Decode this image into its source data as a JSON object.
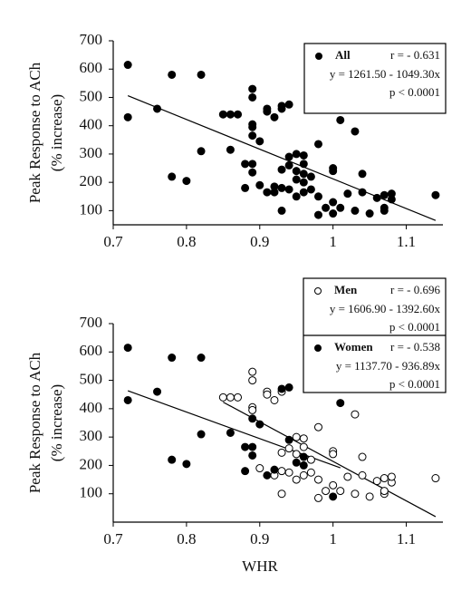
{
  "chart_data": [
    {
      "type": "scatter",
      "ylabel": [
        "Peak Response to ACh",
        "(% increase)"
      ],
      "xlim": [
        0.7,
        1.15
      ],
      "ylim": [
        50,
        700
      ],
      "xticks": [
        0.7,
        0.8,
        0.9,
        1,
        1.1
      ],
      "yticks": [
        100,
        200,
        300,
        400,
        500,
        600,
        700
      ],
      "series": [
        {
          "name": "All",
          "color": "#000000",
          "marker": "filled",
          "r": "r = - 0.631",
          "equation": "y = 1261.50 - 1049.30x",
          "p": "p < 0.0001",
          "x": [
            0.72,
            0.72,
            0.76,
            0.78,
            0.78,
            0.8,
            0.82,
            0.82,
            0.86,
            0.88,
            0.88,
            0.89,
            0.89,
            0.89,
            0.9,
            0.91,
            0.92,
            0.93,
            0.94,
            0.94,
            0.95,
            0.96,
            0.96,
            1.0,
            1.01,
            0.85,
            0.86,
            0.87,
            0.89,
            0.89,
            0.89,
            0.89,
            0.9,
            0.91,
            0.91,
            0.92,
            0.92,
            0.93,
            0.93,
            0.93,
            0.93,
            0.94,
            0.94,
            0.95,
            0.95,
            0.95,
            0.96,
            0.96,
            0.96,
            0.97,
            0.97,
            0.98,
            0.98,
            0.98,
            0.99,
            1.0,
            1.0,
            1.0,
            1.01,
            1.02,
            1.03,
            1.03,
            1.04,
            1.04,
            1.05,
            1.06,
            1.07,
            1.07,
            1.07,
            1.08,
            1.08,
            1.14
          ],
          "values": [
            615,
            430,
            460,
            580,
            220,
            205,
            580,
            310,
            315,
            265,
            180,
            365,
            265,
            235,
            345,
            165,
            185,
            470,
            475,
            290,
            210,
            200,
            230,
            90,
            420,
            440,
            440,
            440,
            530,
            500,
            405,
            395,
            190,
            460,
            450,
            430,
            165,
            460,
            245,
            180,
            100,
            175,
            260,
            300,
            240,
            150,
            295,
            265,
            165,
            175,
            220,
            335,
            150,
            85,
            110,
            250,
            240,
            130,
            110,
            160,
            380,
            100,
            230,
            165,
            90,
            145,
            155,
            100,
            110,
            140,
            160,
            155
          ]
        }
      ]
    },
    {
      "type": "scatter",
      "ylabel": [
        "Peak Response to ACh",
        "(% increase)"
      ],
      "xlabel": "WHR",
      "xlim": [
        0.7,
        1.15
      ],
      "ylim": [
        0,
        700
      ],
      "xticks": [
        0.7,
        0.8,
        0.9,
        1,
        1.1
      ],
      "yticks": [
        100,
        200,
        300,
        400,
        500,
        600,
        700
      ],
      "series": [
        {
          "name": "Men",
          "color": "#000000",
          "marker": "open",
          "r": "r = - 0.696",
          "equation": "y = 1606.90 - 1392.60x",
          "p": "p < 0.0001",
          "x": [
            0.85,
            0.86,
            0.87,
            0.89,
            0.89,
            0.89,
            0.89,
            0.9,
            0.91,
            0.91,
            0.92,
            0.92,
            0.93,
            0.93,
            0.93,
            0.93,
            0.94,
            0.94,
            0.95,
            0.95,
            0.95,
            0.96,
            0.96,
            0.96,
            0.97,
            0.97,
            0.98,
            0.98,
            0.98,
            0.99,
            1.0,
            1.0,
            1.0,
            1.01,
            1.02,
            1.03,
            1.03,
            1.04,
            1.04,
            1.05,
            1.06,
            1.07,
            1.07,
            1.07,
            1.08,
            1.08,
            1.14
          ],
          "values": [
            440,
            440,
            440,
            530,
            500,
            405,
            395,
            190,
            460,
            450,
            430,
            165,
            460,
            245,
            180,
            100,
            175,
            260,
            300,
            240,
            150,
            295,
            265,
            165,
            175,
            220,
            335,
            150,
            85,
            110,
            250,
            240,
            130,
            110,
            160,
            380,
            100,
            230,
            165,
            90,
            145,
            155,
            100,
            110,
            140,
            160,
            155
          ]
        },
        {
          "name": "Women",
          "color": "#000000",
          "marker": "filled",
          "r": "r = - 0.538",
          "equation": "y = 1137.70 - 936.89x",
          "p": "p < 0.0001",
          "x": [
            0.72,
            0.72,
            0.76,
            0.78,
            0.78,
            0.8,
            0.82,
            0.82,
            0.86,
            0.88,
            0.88,
            0.89,
            0.89,
            0.89,
            0.9,
            0.91,
            0.92,
            0.93,
            0.94,
            0.94,
            0.95,
            0.96,
            0.96,
            1.0,
            1.01
          ],
          "values": [
            615,
            430,
            460,
            580,
            220,
            205,
            580,
            310,
            315,
            265,
            180,
            365,
            265,
            235,
            345,
            165,
            185,
            470,
            475,
            290,
            210,
            200,
            230,
            90,
            420
          ]
        }
      ]
    }
  ]
}
